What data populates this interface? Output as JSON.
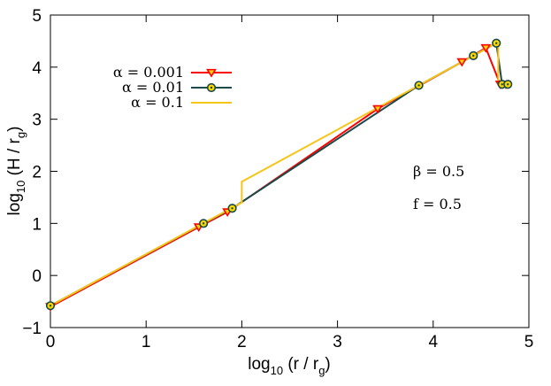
{
  "chart_data": {
    "type": "line",
    "xlabel": {
      "prefix": "log",
      "sub": "10",
      "text": " (r / r",
      "sub2": "g",
      "suffix": ")"
    },
    "ylabel": {
      "prefix": "log",
      "sub": "10",
      "text": " (H / r",
      "sub2": "g",
      "suffix": ")"
    },
    "xlim": [
      0,
      5
    ],
    "ylim": [
      -1,
      5
    ],
    "xticks": [
      "0",
      "1",
      "2",
      "3",
      "4",
      "5"
    ],
    "yticks": [
      "−1",
      "0",
      "1",
      "2",
      "3",
      "4",
      "5"
    ],
    "grid": false,
    "legend_position": "top-left",
    "annotations": [
      "β = 0.5",
      "f = 0.5"
    ],
    "series": [
      {
        "name": "α = 0.001",
        "color": "#ff0000",
        "marker": "down-triangle",
        "marker_fill": "#ffd700",
        "x": [
          0.0,
          1.55,
          1.85,
          3.42,
          4.3,
          4.55,
          4.7,
          4.72,
          4.76
        ],
        "y": [
          -0.6,
          0.93,
          1.22,
          3.2,
          4.1,
          4.37,
          3.67,
          3.67,
          3.67
        ]
      },
      {
        "name": "α = 0.01",
        "color": "#1a4a4a",
        "marker": "circle",
        "marker_fill": "#ffd700",
        "x": [
          0.0,
          1.6,
          1.9,
          3.85,
          4.42,
          4.66,
          4.72,
          4.78
        ],
        "y": [
          -0.58,
          1.0,
          1.29,
          3.65,
          4.22,
          4.46,
          3.67,
          3.67
        ]
      },
      {
        "name": "α = 0.1",
        "color": "#f5c518",
        "marker": "none",
        "x": [
          0.0,
          2.0,
          2.0,
          4.67,
          4.68,
          4.68,
          4.78
        ],
        "y": [
          -0.58,
          1.4,
          1.8,
          4.47,
          4.47,
          3.67,
          3.67
        ]
      }
    ]
  }
}
